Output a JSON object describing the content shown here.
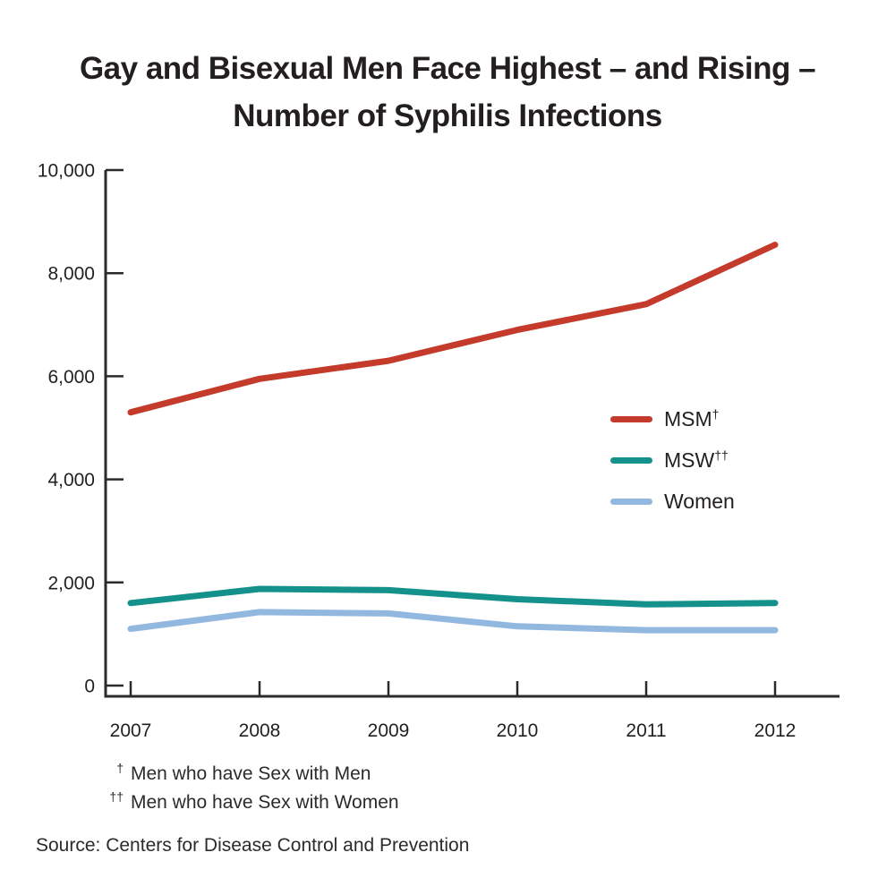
{
  "header": {
    "title_line1": "Gay and Bisexual Men Face Highest – and Rising –",
    "title_line2": "Number of Syphilis Infections"
  },
  "chart_data": {
    "type": "line",
    "title": "Gay and Bisexual Men Face Highest – and Rising – Number of Syphilis Infections",
    "x_categories": [
      "2007",
      "2008",
      "2009",
      "2010",
      "2011",
      "2012"
    ],
    "series": [
      {
        "name": "MSM",
        "sup": "†",
        "color": "#c43a2b",
        "values": [
          5300,
          5950,
          6300,
          6900,
          7400,
          8550
        ]
      },
      {
        "name": "MSW",
        "sup": "††",
        "color": "#14918a",
        "values": [
          1600,
          1875,
          1850,
          1675,
          1575,
          1600
        ]
      },
      {
        "name": "Women",
        "sup": "",
        "color": "#93b8e0",
        "values": [
          1100,
          1425,
          1400,
          1150,
          1075,
          1075
        ]
      }
    ],
    "ylim": [
      0,
      10000
    ],
    "y_ticks": {
      "values": [
        0,
        2000,
        4000,
        6000,
        8000,
        10000
      ],
      "labels": [
        "0",
        "2,000",
        "4,000",
        "6,000",
        "8,000",
        "10,000"
      ]
    },
    "grid": false,
    "legend_position": "inside-right",
    "axis_color": "#2b2b2b",
    "text_color": "#231f20"
  },
  "footnotes": [
    {
      "sup": "†",
      "text": "Men who have Sex with Men"
    },
    {
      "sup": "††",
      "text": "Men who have Sex with Women"
    }
  ],
  "footer": {
    "source": "Source: Centers for Disease Control and Prevention"
  }
}
